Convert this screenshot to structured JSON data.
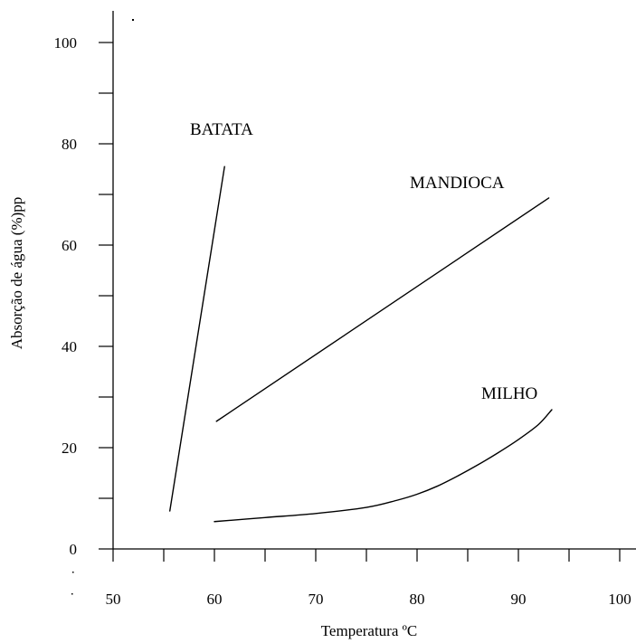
{
  "chart_data": {
    "type": "line",
    "title": "",
    "xlabel": "Temperatura ºC",
    "ylabel": "Absorção de água (%)pp",
    "xlim": [
      50,
      100
    ],
    "ylim": [
      0,
      105
    ],
    "x_ticks": [
      50,
      60,
      70,
      80,
      90,
      100
    ],
    "y_ticks": [
      0,
      20,
      40,
      60,
      80,
      100
    ],
    "x_minor_step": 5,
    "y_minor_step": 10,
    "grid": false,
    "legend": "none",
    "series": [
      {
        "name": "BATATA",
        "x": [
          55.6,
          61.0
        ],
        "y": [
          7.5,
          75.5
        ]
      },
      {
        "name": "MANDIOCA",
        "x": [
          60.2,
          93.0
        ],
        "y": [
          25.2,
          69.3
        ]
      },
      {
        "name": "MILHO",
        "x": [
          60.0,
          65.0,
          70.0,
          75.0,
          78.0,
          80.0,
          82.0,
          84.0,
          86.0,
          88.0,
          90.0,
          92.0,
          93.3
        ],
        "y": [
          5.4,
          6.2,
          7.0,
          8.2,
          9.6,
          10.8,
          12.4,
          14.4,
          16.6,
          19.0,
          21.6,
          24.6,
          27.5
        ]
      }
    ]
  }
}
